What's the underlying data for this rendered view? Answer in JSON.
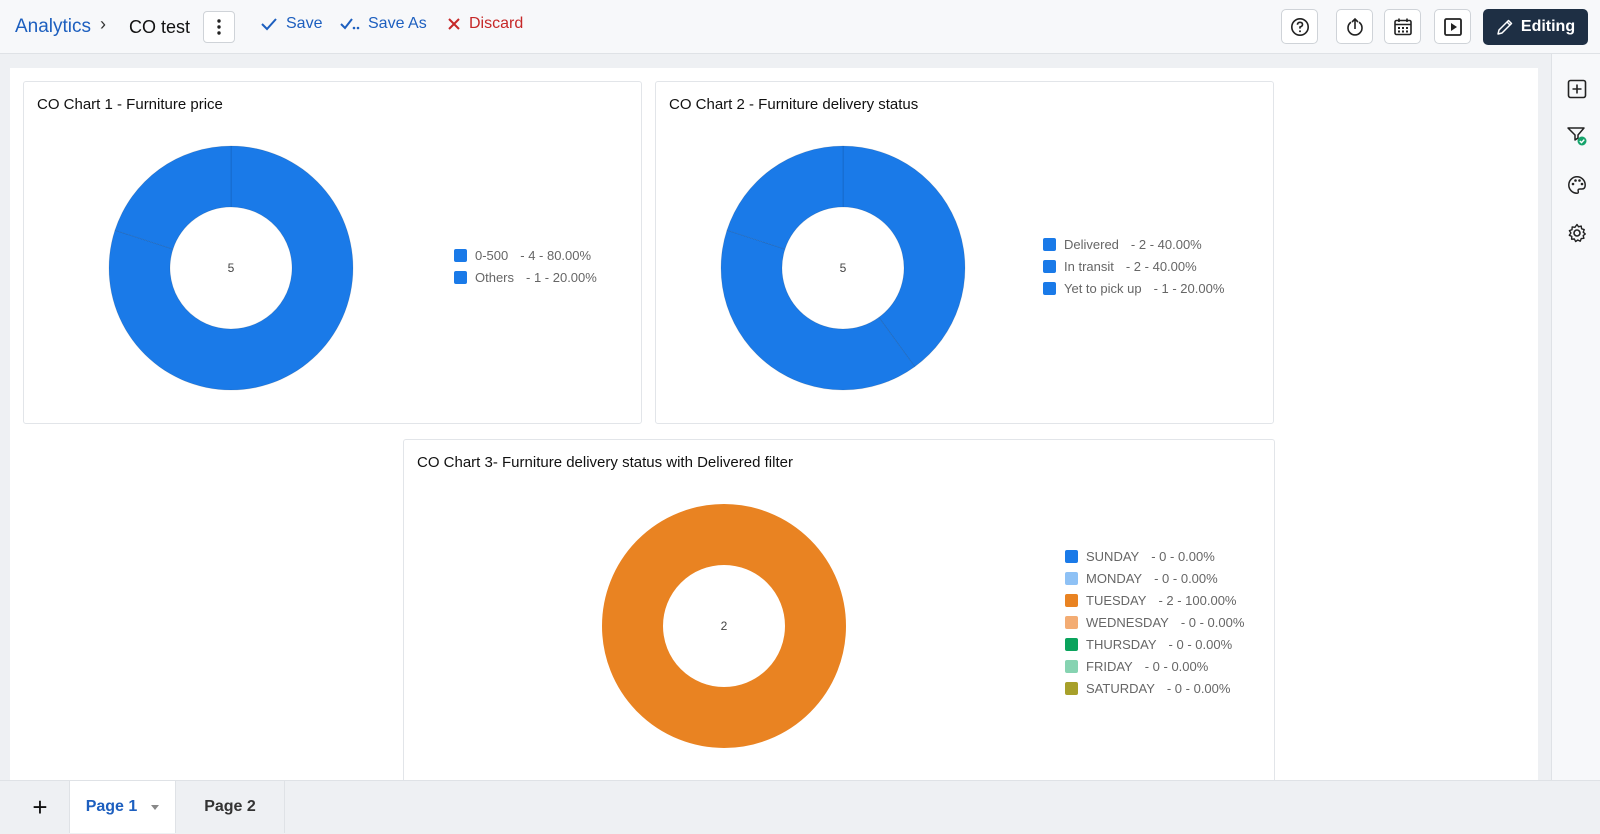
{
  "header": {
    "breadcrumb_root": "Analytics",
    "breadcrumb_sep": "›",
    "title": "CO test",
    "save_label": "Save",
    "save_as_label": "Save As",
    "discard_label": "Discard",
    "editing_label": "Editing"
  },
  "colors": {
    "accent": "#1d5fbf",
    "blue": "#1a7ae8",
    "orange": "#e98322",
    "discard": "#c62828",
    "editing_bg": "#1e2f44"
  },
  "pages": {
    "add_label": "+",
    "tabs": [
      "Page 1",
      "Page 2"
    ],
    "active": "Page 1"
  },
  "right_rail": [
    "add-widget-icon",
    "filter-check-icon",
    "palette-icon",
    "settings-gear-icon"
  ],
  "chart_data": [
    {
      "type": "pie",
      "variant": "donut",
      "title": "CO Chart 1 - Furniture price",
      "center_label": "5",
      "slices": [
        {
          "name": "0-500",
          "value": 4,
          "percent": "80.00%",
          "color": "#1a7ae8"
        },
        {
          "name": "Others",
          "value": 1,
          "percent": "20.00%",
          "color": "#1a7ae8"
        }
      ],
      "legend": [
        {
          "name": "0-500",
          "detail": "- 4 - 80.00%"
        },
        {
          "name": "Others",
          "detail": "- 1 - 20.00%"
        }
      ]
    },
    {
      "type": "pie",
      "variant": "donut",
      "title": "CO Chart 2 - Furniture delivery status",
      "center_label": "5",
      "slices": [
        {
          "name": "Delivered",
          "value": 2,
          "percent": "40.00%",
          "color": "#1a7ae8"
        },
        {
          "name": "In transit",
          "value": 2,
          "percent": "40.00%",
          "color": "#1a7ae8"
        },
        {
          "name": "Yet to pick up",
          "value": 1,
          "percent": "20.00%",
          "color": "#1a7ae8"
        }
      ],
      "legend": [
        {
          "name": "Delivered",
          "detail": "- 2 - 40.00%"
        },
        {
          "name": "In transit",
          "detail": "- 2 - 40.00%"
        },
        {
          "name": "Yet to pick up",
          "detail": "- 1 - 20.00%"
        }
      ]
    },
    {
      "type": "pie",
      "variant": "donut",
      "title": "CO Chart 3- Furniture delivery status with Delivered filter",
      "center_label": "2",
      "slices": [
        {
          "name": "SUNDAY",
          "value": 0,
          "percent": "0.00%",
          "color": "#1a7ae8"
        },
        {
          "name": "MONDAY",
          "value": 0,
          "percent": "0.00%",
          "color": "#8ec1f5"
        },
        {
          "name": "TUESDAY",
          "value": 2,
          "percent": "100.00%",
          "color": "#e98322"
        },
        {
          "name": "WEDNESDAY",
          "value": 0,
          "percent": "0.00%",
          "color": "#f3ac73"
        },
        {
          "name": "THURSDAY",
          "value": 0,
          "percent": "0.00%",
          "color": "#0aa35c"
        },
        {
          "name": "FRIDAY",
          "value": 0,
          "percent": "0.00%",
          "color": "#86d3b1"
        },
        {
          "name": "SATURDAY",
          "value": 0,
          "percent": "0.00%",
          "color": "#a7a02a"
        }
      ],
      "legend": [
        {
          "name": "SUNDAY",
          "detail": "- 0 - 0.00%"
        },
        {
          "name": "MONDAY",
          "detail": "- 0 - 0.00%"
        },
        {
          "name": "TUESDAY",
          "detail": "- 2 - 100.00%"
        },
        {
          "name": "WEDNESDAY",
          "detail": "- 0 - 0.00%"
        },
        {
          "name": "THURSDAY",
          "detail": "- 0 - 0.00%"
        },
        {
          "name": "FRIDAY",
          "detail": "- 0 - 0.00%"
        },
        {
          "name": "SATURDAY",
          "detail": "- 0 - 0.00%"
        }
      ]
    }
  ]
}
